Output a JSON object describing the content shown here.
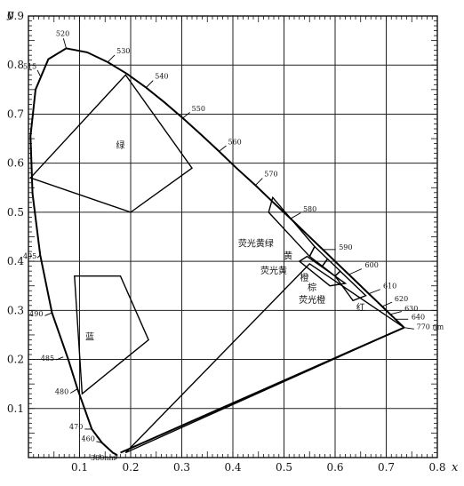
{
  "chart_data": {
    "type": "line",
    "title": "",
    "xlabel": "x",
    "ylabel": "y",
    "xlim": [
      0,
      0.8
    ],
    "ylim": [
      0,
      0.9
    ],
    "grid": true,
    "x_ticks": [
      0.1,
      0.2,
      0.3,
      0.4,
      0.5,
      0.6,
      0.7,
      0.8
    ],
    "x_tick_labels": [
      "0.1",
      "0.2",
      "0.3",
      "0.4",
      "0.5",
      "0.6",
      "0.7",
      "0.8"
    ],
    "y_ticks": [
      0.1,
      0.2,
      0.3,
      0.4,
      0.5,
      0.6,
      0.7,
      0.8,
      0.9
    ],
    "y_tick_labels": [
      "0.1",
      "0.2",
      "0.3",
      "0.4",
      "0.5",
      "0.6",
      "0.7",
      "0.8",
      "0.9"
    ],
    "spectral_locus": {
      "x": [
        0.174,
        0.165,
        0.144,
        0.124,
        0.096,
        0.078,
        0.046,
        0.023,
        0.008,
        0.004,
        0.014,
        0.039,
        0.074,
        0.115,
        0.155,
        0.193,
        0.23,
        0.266,
        0.302,
        0.337,
        0.373,
        0.408,
        0.444,
        0.479,
        0.513,
        0.546,
        0.576,
        0.603,
        0.627,
        0.648,
        0.666,
        0.681,
        0.692,
        0.701,
        0.708,
        0.735
      ],
      "y": [
        0.005,
        0.01,
        0.03,
        0.058,
        0.14,
        0.2,
        0.295,
        0.413,
        0.538,
        0.655,
        0.75,
        0.812,
        0.834,
        0.826,
        0.806,
        0.782,
        0.754,
        0.724,
        0.692,
        0.659,
        0.624,
        0.589,
        0.555,
        0.52,
        0.487,
        0.454,
        0.424,
        0.397,
        0.373,
        0.352,
        0.334,
        0.319,
        0.308,
        0.299,
        0.292,
        0.265
      ]
    },
    "purple_line": {
      "from": [
        0.18,
        0.01
      ],
      "to": [
        0.735,
        0.265
      ]
    },
    "wavelength_labels": [
      {
        "text": "380nm",
        "x": 0.174,
        "y": 0.005
      },
      {
        "text": "460",
        "x": 0.144,
        "y": 0.03
      },
      {
        "text": "470",
        "x": 0.124,
        "y": 0.058
      },
      {
        "text": "480",
        "x": 0.096,
        "y": 0.14
      },
      {
        "text": "485",
        "x": 0.068,
        "y": 0.205
      },
      {
        "text": "490",
        "x": 0.046,
        "y": 0.295
      },
      {
        "text": "495",
        "x": 0.023,
        "y": 0.413
      },
      {
        "text": "515",
        "x": 0.023,
        "y": 0.778
      },
      {
        "text": "520",
        "x": 0.074,
        "y": 0.834
      },
      {
        "text": "530",
        "x": 0.155,
        "y": 0.806
      },
      {
        "text": "540",
        "x": 0.23,
        "y": 0.754
      },
      {
        "text": "550",
        "x": 0.302,
        "y": 0.692
      },
      {
        "text": "560",
        "x": 0.373,
        "y": 0.624
      },
      {
        "text": "570",
        "x": 0.444,
        "y": 0.555
      },
      {
        "text": "580",
        "x": 0.513,
        "y": 0.487
      },
      {
        "text": "590",
        "x": 0.576,
        "y": 0.424
      },
      {
        "text": "600",
        "x": 0.627,
        "y": 0.373
      },
      {
        "text": "610",
        "x": 0.666,
        "y": 0.334
      },
      {
        "text": "620",
        "x": 0.692,
        "y": 0.308
      },
      {
        "text": "630",
        "x": 0.708,
        "y": 0.292
      },
      {
        "text": "640",
        "x": 0.718,
        "y": 0.282
      },
      {
        "text": "770 nm",
        "x": 0.735,
        "y": 0.265
      }
    ],
    "regions": [
      {
        "name": "绿",
        "polygon": [
          [
            0.004,
            0.57
          ],
          [
            0.19,
            0.78
          ],
          [
            0.32,
            0.59
          ],
          [
            0.2,
            0.5
          ]
        ]
      },
      {
        "name": "蓝",
        "polygon": [
          [
            0.09,
            0.37
          ],
          [
            0.18,
            0.37
          ],
          [
            0.235,
            0.24
          ],
          [
            0.105,
            0.13
          ]
        ]
      },
      {
        "name": "红",
        "polygon": [
          [
            0.19,
            0.01
          ],
          [
            0.55,
            0.395
          ],
          [
            0.735,
            0.265
          ]
        ]
      },
      {
        "name": "荧光黄绿",
        "polygon": [
          [
            0.47,
            0.5
          ],
          [
            0.478,
            0.53
          ],
          [
            0.56,
            0.43
          ],
          [
            0.55,
            0.41
          ]
        ]
      },
      {
        "name": "黄",
        "polygon": [
          [
            0.55,
            0.41
          ],
          [
            0.56,
            0.43
          ],
          [
            0.585,
            0.405
          ],
          [
            0.575,
            0.39
          ]
        ]
      },
      {
        "name": "荧光黄",
        "polygon": [
          [
            0.575,
            0.39
          ],
          [
            0.585,
            0.405
          ],
          [
            0.61,
            0.38
          ],
          [
            0.6,
            0.37
          ]
        ]
      },
      {
        "name": "棕",
        "polygon": [
          [
            0.53,
            0.4
          ],
          [
            0.545,
            0.41
          ],
          [
            0.62,
            0.355
          ],
          [
            0.59,
            0.35
          ]
        ]
      },
      {
        "name": "荧光橙",
        "polygon": [
          [
            0.6,
            0.37
          ],
          [
            0.61,
            0.38
          ],
          [
            0.66,
            0.33
          ],
          [
            0.635,
            0.32
          ]
        ]
      }
    ],
    "region_label_positions": [
      {
        "text": "绿",
        "x": 0.18,
        "y": 0.63
      },
      {
        "text": "蓝",
        "x": 0.12,
        "y": 0.24
      },
      {
        "text": "红",
        "x": 0.65,
        "y": 0.3
      },
      {
        "text": "荧光黄绿",
        "x": 0.445,
        "y": 0.43
      },
      {
        "text": "黄",
        "x": 0.508,
        "y": 0.405
      },
      {
        "text": "荧光黄",
        "x": 0.48,
        "y": 0.375
      },
      {
        "text": "橙",
        "x": 0.54,
        "y": 0.36
      },
      {
        "text": "棕",
        "x": 0.555,
        "y": 0.34
      },
      {
        "text": "荧光橙",
        "x": 0.555,
        "y": 0.315
      }
    ]
  }
}
